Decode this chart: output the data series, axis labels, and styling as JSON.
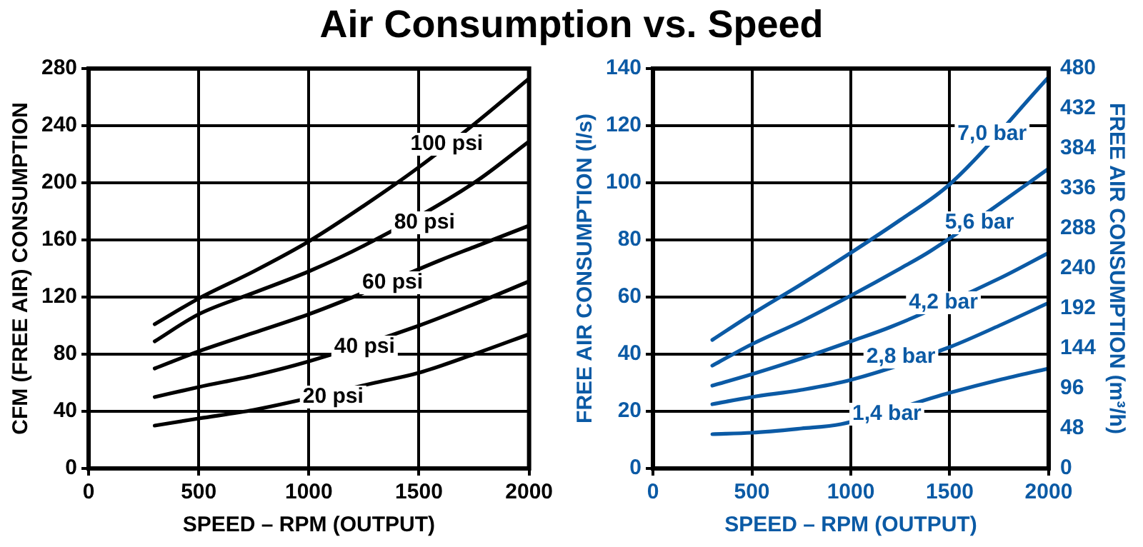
{
  "chart_data": [
    {
      "type": "line",
      "title": "Air Consumption vs. Speed",
      "xlabel": "SPEED – RPM (OUTPUT)",
      "ylabel": "CFM (FREE AIR) CONSUMPTION",
      "x": [
        300,
        500,
        750,
        1000,
        1250,
        1500,
        1750,
        2000
      ],
      "series": [
        {
          "color": "#000000",
          "values": [
            101,
            119,
            138,
            159,
            184,
            211,
            241,
            273
          ]
        },
        {
          "color": "#000000",
          "x": [
            300,
            500,
            750,
            1000,
            1250,
            1750,
            2000
          ],
          "values": [
            89,
            108,
            123,
            138,
            156,
            200,
            229
          ]
        },
        {
          "color": "#000000",
          "x": [
            300,
            500,
            750,
            1000,
            1200,
            1600,
            1750,
            2000
          ],
          "values": [
            70,
            82,
            95,
            108,
            120,
            146,
            155,
            170
          ]
        },
        {
          "color": "#000000",
          "x": [
            300,
            500,
            750,
            1000,
            1500,
            1750,
            2000
          ],
          "values": [
            50,
            57,
            65,
            75,
            100,
            115,
            131
          ]
        },
        {
          "color": "#000000",
          "x": [
            300,
            500,
            750,
            1300,
            1500,
            1750,
            2000
          ],
          "values": [
            30,
            35,
            41,
            60,
            67,
            80,
            94
          ]
        }
      ],
      "xlim": [
        0,
        2000
      ],
      "xticks": [
        0,
        500,
        1000,
        1500,
        2000
      ],
      "ylim": [
        0,
        280
      ],
      "yticks": [
        0,
        40,
        80,
        120,
        160,
        200,
        240,
        280
      ],
      "grid": true,
      "legend": false,
      "marker": "none",
      "line_style": "solid",
      "annotations": [
        {
          "text": "100 psi",
          "x": 1626,
          "y": 227
        },
        {
          "text": "80 psi",
          "x": 1525,
          "y": 172
        },
        {
          "text": "60 psi",
          "x": 1380,
          "y": 130
        },
        {
          "text": "40 psi",
          "x": 1253,
          "y": 85
        },
        {
          "text": "20 psi",
          "x": 1110,
          "y": 50
        }
      ]
    },
    {
      "type": "line",
      "xlabel": "SPEED – RPM (OUTPUT)",
      "ylabel": "FREE AIR CONSUMPTION (l/s)",
      "y2label": "FREE AIR CONSUMPTION (m³/h)",
      "x": [
        300,
        500,
        750,
        1000,
        1250,
        1500,
        2000
      ],
      "series": [
        {
          "color": "#0b5aa5",
          "values": [
            45,
            54,
            64.5,
            75.5,
            87,
            99.5,
            137
          ]
        },
        {
          "color": "#0b5aa5",
          "x": [
            300,
            500,
            750,
            1000,
            1250,
            1400,
            1900,
            2000
          ],
          "values": [
            36,
            43.5,
            51.5,
            60.5,
            70,
            76,
            100,
            105
          ]
        },
        {
          "color": "#0b5aa5",
          "x": [
            300,
            500,
            750,
            1000,
            1200,
            1750,
            2000
          ],
          "values": [
            29,
            33,
            38.5,
            44.5,
            49.5,
            66.5,
            75.5
          ]
        },
        {
          "color": "#0b5aa5",
          "x": [
            300,
            500,
            750,
            1000,
            1500,
            1750,
            2000
          ],
          "values": [
            22.5,
            25,
            27.5,
            31,
            42.5,
            50,
            58
          ]
        },
        {
          "color": "#0b5aa5",
          "x": [
            300,
            500,
            750,
            950,
            1500,
            1750,
            2000
          ],
          "values": [
            12,
            12.5,
            14,
            15.5,
            26.5,
            31,
            35
          ]
        }
      ],
      "xlim": [
        0,
        2000
      ],
      "xticks": [
        0,
        500,
        1000,
        1500,
        2000
      ],
      "ylim": [
        0,
        140
      ],
      "yticks": [
        0,
        20,
        40,
        60,
        80,
        100,
        120,
        140
      ],
      "y2lim": [
        0,
        480
      ],
      "y2ticks": [
        0,
        48,
        96,
        144,
        192,
        240,
        288,
        336,
        384,
        432,
        480
      ],
      "grid": true,
      "legend": false,
      "marker": "none",
      "line_style": "solid",
      "annotations": [
        {
          "text": "7,0 bar",
          "x": 1714,
          "y": 117
        },
        {
          "text": "5,6 bar",
          "x": 1650,
          "y": 86
        },
        {
          "text": "4,2 bar",
          "x": 1468,
          "y": 58
        },
        {
          "text": "2,8 bar",
          "x": 1253,
          "y": 39
        },
        {
          "text": "1,4 bar",
          "x": 1182,
          "y": 19
        }
      ]
    }
  ]
}
